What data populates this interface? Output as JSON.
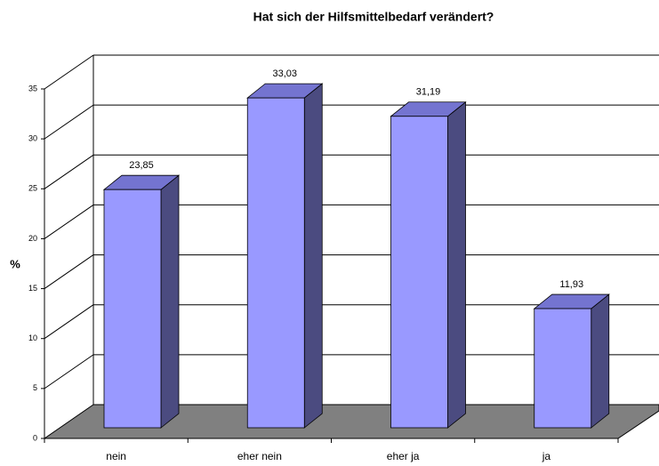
{
  "chart_data": {
    "type": "bar3d",
    "title": "Hat sich der Hilfsmittelbedarf verändert?",
    "y_label": "%",
    "categories": [
      "nein",
      "eher nein",
      "eher ja",
      "ja"
    ],
    "values": [
      23.85,
      33.03,
      31.19,
      11.93
    ],
    "value_labels": [
      "23,85",
      "33,03",
      "31,19",
      "11,93"
    ],
    "color": "#9999ff",
    "ylim": [
      0,
      35
    ],
    "yticks": [
      0,
      5,
      10,
      15,
      20,
      25,
      30,
      35
    ],
    "grid": true
  }
}
